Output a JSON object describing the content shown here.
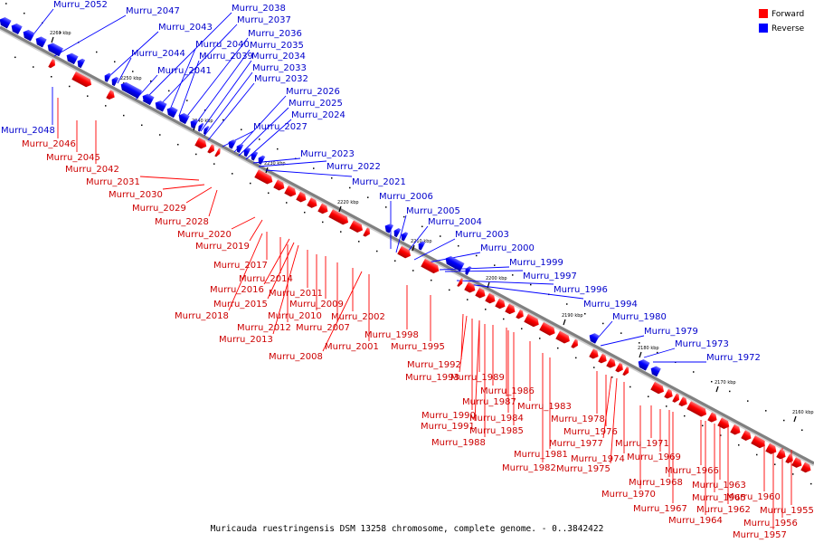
{
  "caption": "Muricauda ruestringensis DSM 13258 chromosome, complete genome. - 0..3842422",
  "colors": {
    "forward": "#ff0000",
    "reverse": "#0000ff",
    "forward_text": "#cc0000",
    "reverse_text": "#0000cc",
    "backbone": "#808080"
  },
  "legend": {
    "forward": "Forward",
    "reverse": "Reverse"
  },
  "ticks": [
    "2260 kbp",
    "2250 kbp",
    "2240 kbp",
    "2230 kbp",
    "2220 kbp",
    "2210 kbp",
    "2200 kbp",
    "2190 kbp",
    "2180 kbp",
    "2170 kbp",
    "2160 kbp"
  ],
  "reverse_genes": [
    "Murru_2052",
    "Murru_2047",
    "Murru_2043",
    "Murru_2044",
    "Murru_2041",
    "Murru_2040",
    "Murru_2039",
    "Murru_2038",
    "Murru_2037",
    "Murru_2036",
    "Murru_2035",
    "Murru_2034",
    "Murru_2033",
    "Murru_2032",
    "Murru_2026",
    "Murru_2025",
    "Murru_2024",
    "Murru_2027",
    "Murru_2023",
    "Murru_2022",
    "Murru_2021",
    "Murru_2006",
    "Murru_2005",
    "Murru_2004",
    "Murru_2003",
    "Murru_2000",
    "Murru_1999",
    "Murru_1997",
    "Murru_1996",
    "Murru_1994",
    "Murru_1980",
    "Murru_1979",
    "Murru_1973",
    "Murru_1972",
    "Murru_2048"
  ],
  "forward_genes": [
    "Murru_2046",
    "Murru_2045",
    "Murru_2042",
    "Murru_2031",
    "Murru_2030",
    "Murru_2029",
    "Murru_2028",
    "Murru_2020",
    "Murru_2019",
    "Murru_2017",
    "Murru_2014",
    "Murru_2016",
    "Murru_2015",
    "Murru_2018",
    "Murru_2011",
    "Murru_2010",
    "Murru_2009",
    "Murru_2012",
    "Murru_2013",
    "Murru_2007",
    "Murru_2002",
    "Murru_2001",
    "Murru_2008",
    "Murru_1998",
    "Murru_1995",
    "Murru_1992",
    "Murru_1993",
    "Murru_1989",
    "Murru_1986",
    "Murru_1987",
    "Murru_1983",
    "Murru_1990",
    "Murru_1984",
    "Murru_1991",
    "Murru_1985",
    "Murru_1988",
    "Murru_1978",
    "Murru_1976",
    "Murru_1977",
    "Murru_1981",
    "Murru_1974",
    "Murru_1982",
    "Murru_1975",
    "Murru_1971",
    "Murru_1969",
    "Murru_1966",
    "Murru_1968",
    "Murru_1963",
    "Murru_1970",
    "Murru_1965",
    "Murru_1960",
    "Murru_1962",
    "Murru_1967",
    "Murru_1964",
    "Murru_1955",
    "Murru_1956",
    "Murru_1957"
  ]
}
